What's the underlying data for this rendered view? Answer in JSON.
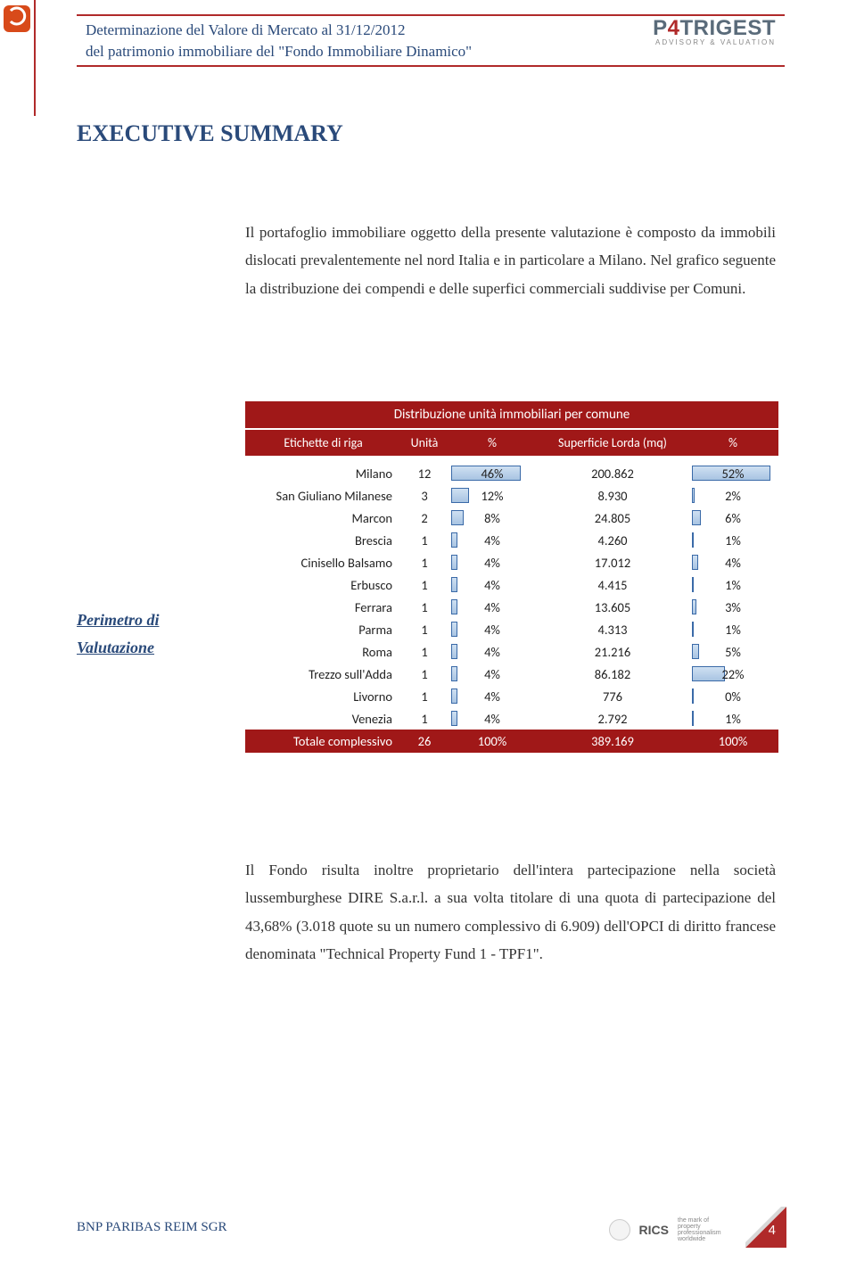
{
  "header": {
    "line1": "Determinazione del Valore di Mercato al 31/12/2012",
    "line2": "del patrimonio immobiliare del \"Fondo Immobiliare Dinamico\"",
    "brand": "P",
    "brand_slash": "4",
    "brand_rest": "TRIGEST",
    "brand_sub": "ADVISORY & VALUATION",
    "rule_color": "#b02a2a"
  },
  "title": "EXECUTIVE SUMMARY",
  "intro": "Il portafoglio immobiliare oggetto della presente valutazione è composto da immobili dislocati prevalentemente nel nord Italia e in particolare a Milano. Nel grafico seguente la distribuzione dei compendi e delle superfici commerciali suddivise per Comuni.",
  "section_label_1": "Perimetro di",
  "section_label_2": "Valutazione",
  "table": {
    "title": "Distribuzione unità immobiliari per comune",
    "header": {
      "label": "Etichette di riga",
      "units": "Unità",
      "pct": "%",
      "surface": "Superficie Lorda (mq)",
      "pct2": "%"
    },
    "colors": {
      "header_bg": "#a01818",
      "header_text": "#ffffff",
      "bar_border": "#3a6aa8",
      "bar_fill_top": "#cfe0f2",
      "bar_fill_bottom": "#a8c4e2"
    },
    "max_pct": 52,
    "rows": [
      {
        "label": "Milano",
        "units": "12",
        "pct": "46%",
        "pct_n": 46,
        "surface": "200.862",
        "pct2": "52%",
        "pct2_n": 52
      },
      {
        "label": "San Giuliano Milanese",
        "units": "3",
        "pct": "12%",
        "pct_n": 12,
        "surface": "8.930",
        "pct2": "2%",
        "pct2_n": 2
      },
      {
        "label": "Marcon",
        "units": "2",
        "pct": "8%",
        "pct_n": 8,
        "surface": "24.805",
        "pct2": "6%",
        "pct2_n": 6
      },
      {
        "label": "Brescia",
        "units": "1",
        "pct": "4%",
        "pct_n": 4,
        "surface": "4.260",
        "pct2": "1%",
        "pct2_n": 1
      },
      {
        "label": "Cinisello Balsamo",
        "units": "1",
        "pct": "4%",
        "pct_n": 4,
        "surface": "17.012",
        "pct2": "4%",
        "pct2_n": 4
      },
      {
        "label": "Erbusco",
        "units": "1",
        "pct": "4%",
        "pct_n": 4,
        "surface": "4.415",
        "pct2": "1%",
        "pct2_n": 1
      },
      {
        "label": "Ferrara",
        "units": "1",
        "pct": "4%",
        "pct_n": 4,
        "surface": "13.605",
        "pct2": "3%",
        "pct2_n": 3
      },
      {
        "label": "Parma",
        "units": "1",
        "pct": "4%",
        "pct_n": 4,
        "surface": "4.313",
        "pct2": "1%",
        "pct2_n": 1
      },
      {
        "label": "Roma",
        "units": "1",
        "pct": "4%",
        "pct_n": 4,
        "surface": "21.216",
        "pct2": "5%",
        "pct2_n": 5
      },
      {
        "label": "Trezzo sull'Adda",
        "units": "1",
        "pct": "4%",
        "pct_n": 4,
        "surface": "86.182",
        "pct2": "22%",
        "pct2_n": 22
      },
      {
        "label": "Livorno",
        "units": "1",
        "pct": "4%",
        "pct_n": 4,
        "surface": "776",
        "pct2": "0%",
        "pct2_n": 0.2
      },
      {
        "label": "Venezia",
        "units": "1",
        "pct": "4%",
        "pct_n": 4,
        "surface": "2.792",
        "pct2": "1%",
        "pct2_n": 1
      }
    ],
    "total": {
      "label": "Totale complessivo",
      "units": "26",
      "pct": "100%",
      "surface": "389.169",
      "pct2": "100%"
    }
  },
  "paragraph2": "Il Fondo risulta inoltre proprietario dell'intera partecipazione nella società lussemburghese DIRE S.a.r.l. a sua volta titolare di una quota di partecipazione del 43,68% (3.018 quote su un numero complessivo di 6.909) dell'OPCI di diritto francese denominata \"Technical Property Fund 1 - TPF1\".",
  "footer": {
    "left": "BNP PARIBAS REIM SGR",
    "page": "4",
    "rics": "RICS",
    "tagline": "the mark of property professionalism worldwide",
    "corner_color": "#b02a2a"
  }
}
